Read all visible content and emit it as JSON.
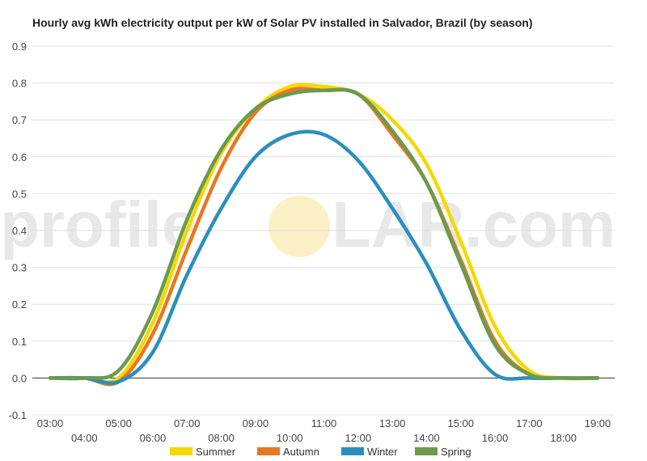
{
  "chart_data": {
    "type": "line",
    "title": "Hourly avg kWh electricity output per kW of Solar PV installed in Salvador, Brazil (by season)",
    "xlabel": "",
    "ylabel": "",
    "ylim": [
      -0.1,
      0.9
    ],
    "yticks": [
      -0.1,
      0.0,
      0.1,
      0.2,
      0.3,
      0.4,
      0.5,
      0.6,
      0.7,
      0.8,
      0.9
    ],
    "ytick_labels": [
      "-0.1",
      "0.0",
      "0.1",
      "0.2",
      "0.3",
      "0.4",
      "0.5",
      "0.6",
      "0.7",
      "0.8",
      "0.9"
    ],
    "x": [
      "03:00",
      "04:00",
      "05:00",
      "06:00",
      "07:00",
      "08:00",
      "09:00",
      "10:00",
      "11:00",
      "12:00",
      "13:00",
      "14:00",
      "15:00",
      "16:00",
      "17:00",
      "18:00",
      "19:00"
    ],
    "grid": true,
    "legend_position": "bottom",
    "series": [
      {
        "name": "Summer",
        "color": "#f5d800",
        "values": [
          0.0,
          0.0,
          0.0,
          0.15,
          0.4,
          0.61,
          0.73,
          0.79,
          0.79,
          0.77,
          0.7,
          0.58,
          0.37,
          0.14,
          0.02,
          0.0,
          0.0
        ]
      },
      {
        "name": "Autumn",
        "color": "#e87722",
        "values": [
          0.0,
          0.0,
          -0.01,
          0.12,
          0.35,
          0.57,
          0.72,
          0.78,
          0.78,
          0.77,
          0.66,
          0.53,
          0.32,
          0.1,
          0.01,
          0.0,
          0.0
        ]
      },
      {
        "name": "Winter",
        "color": "#2b8fbd",
        "values": [
          0.0,
          0.0,
          -0.01,
          0.07,
          0.28,
          0.46,
          0.6,
          0.66,
          0.66,
          0.59,
          0.46,
          0.31,
          0.13,
          0.01,
          0.0,
          0.0,
          0.0
        ]
      },
      {
        "name": "Spring",
        "color": "#6b9a4f",
        "values": [
          0.0,
          0.0,
          0.02,
          0.18,
          0.43,
          0.62,
          0.73,
          0.77,
          0.78,
          0.77,
          0.67,
          0.53,
          0.31,
          0.09,
          0.01,
          0.0,
          0.0
        ]
      }
    ]
  },
  "watermark": {
    "text_left": "profile",
    "text_right": "LAR.com",
    "sun_color": "#fbeebc"
  }
}
